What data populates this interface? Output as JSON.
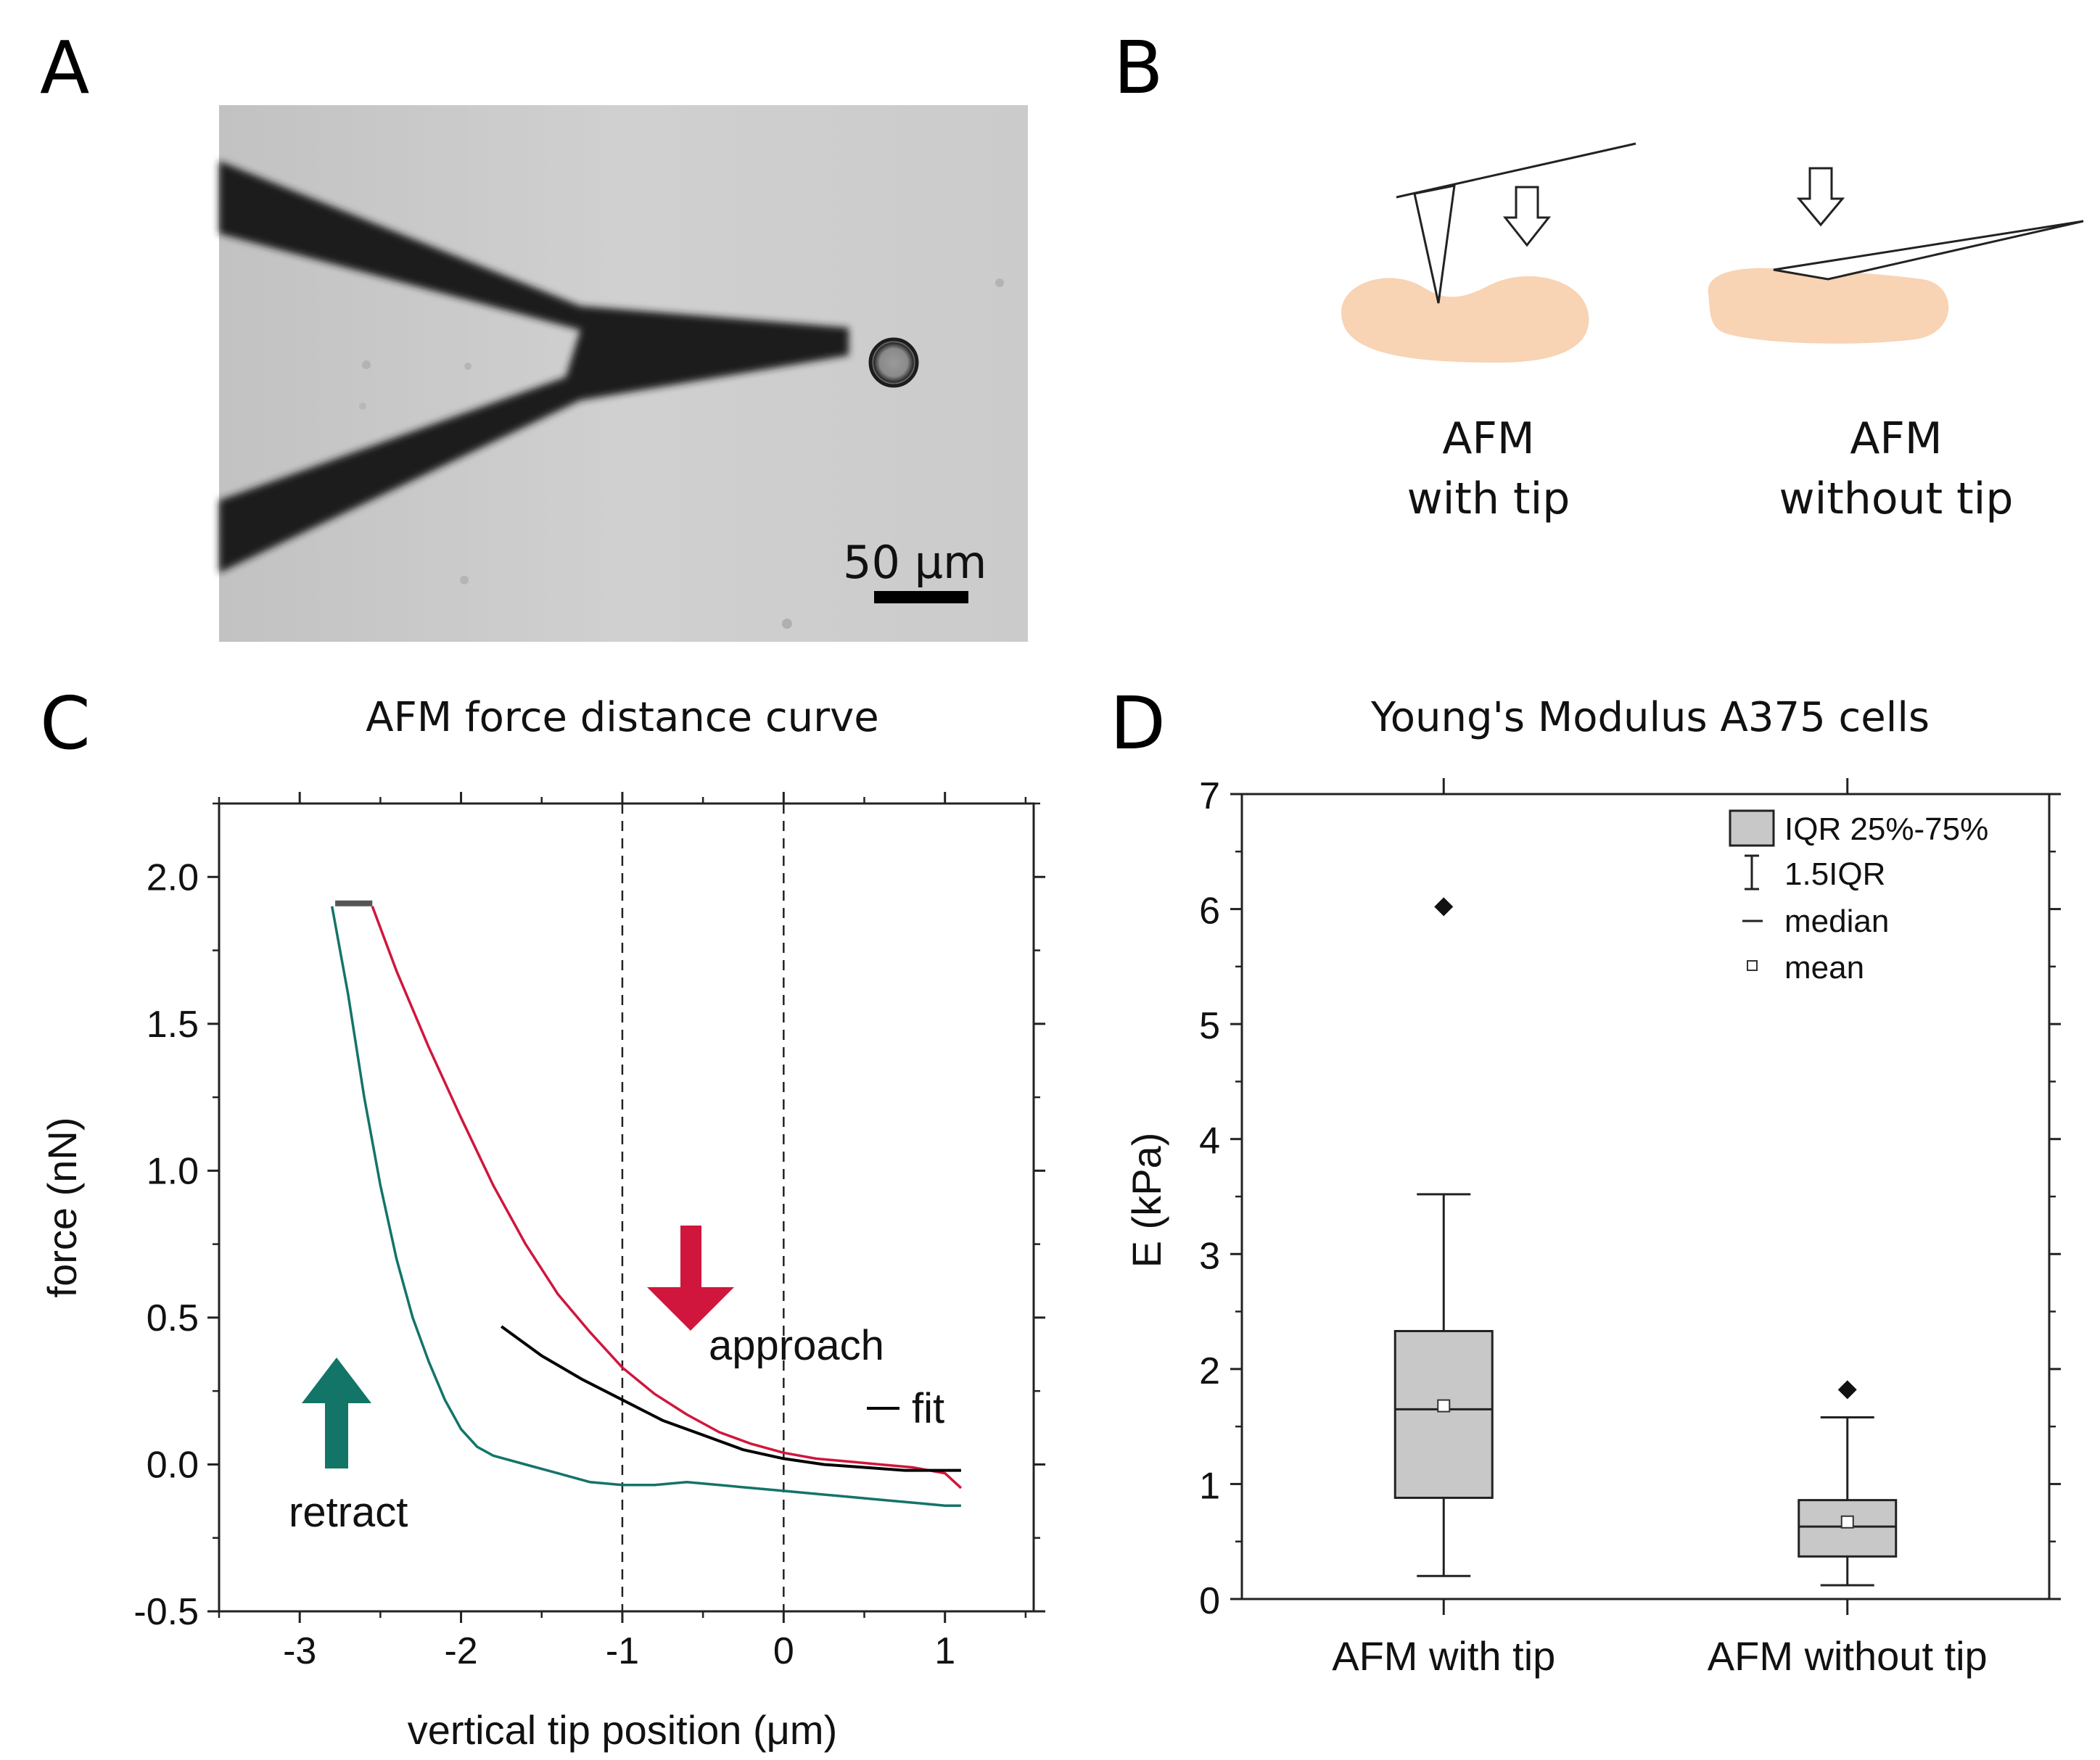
{
  "panel_a": {
    "label": "A",
    "scale_bar_label": "50 µm",
    "colors": {
      "background": "#cfcfcf",
      "cantilever": "#1c1c1c"
    }
  },
  "panel_b": {
    "label": "B",
    "left_caption": [
      "AFM",
      "with tip"
    ],
    "right_caption": [
      "AFM",
      "without tip"
    ],
    "colors": {
      "cell": "#f8d3b4"
    }
  },
  "chart_data": [
    {
      "panel": "C",
      "type": "line",
      "title": "AFM force distance curve",
      "xlabel": "vertical tip position (μm)",
      "ylabel": "force (nN)",
      "xlim": [
        -3.5,
        1.55
      ],
      "ylim": [
        -0.5,
        2.25
      ],
      "xticks": [
        -3,
        -2,
        -1,
        0,
        1
      ],
      "xtick_labels": [
        "-3",
        "-2",
        "-1",
        "0",
        "1"
      ],
      "yticks": [
        -0.5,
        0.0,
        0.5,
        1.0,
        1.5,
        2.0
      ],
      "ytick_labels": [
        "-0.5",
        "0.0",
        "0.5",
        "1.0",
        "1.5",
        "2.0"
      ],
      "vlines": [
        -1,
        0
      ],
      "series": [
        {
          "name": "approach",
          "color": "#d0163c",
          "x": [
            -2.55,
            -2.4,
            -2.2,
            -2.0,
            -1.8,
            -1.6,
            -1.4,
            -1.2,
            -1.0,
            -0.8,
            -0.6,
            -0.4,
            -0.2,
            0.0,
            0.2,
            0.4,
            0.6,
            0.8,
            1.0,
            1.1
          ],
          "y": [
            1.9,
            1.68,
            1.42,
            1.18,
            0.95,
            0.75,
            0.58,
            0.45,
            0.33,
            0.24,
            0.17,
            0.11,
            0.07,
            0.04,
            0.02,
            0.01,
            0.0,
            -0.01,
            -0.03,
            -0.08
          ]
        },
        {
          "name": "retract",
          "color": "#137468",
          "x": [
            -2.8,
            -2.7,
            -2.6,
            -2.5,
            -2.4,
            -2.3,
            -2.2,
            -2.1,
            -2.0,
            -1.9,
            -1.8,
            -1.6,
            -1.4,
            -1.2,
            -1.0,
            -0.8,
            -0.6,
            -0.4,
            -0.2,
            0.0,
            0.2,
            0.4,
            0.6,
            0.8,
            1.0,
            1.1
          ],
          "y": [
            1.9,
            1.6,
            1.25,
            0.95,
            0.7,
            0.5,
            0.35,
            0.22,
            0.12,
            0.06,
            0.03,
            -0.0,
            -0.03,
            -0.06,
            -0.07,
            -0.07,
            -0.06,
            -0.07,
            -0.08,
            -0.09,
            -0.1,
            -0.11,
            -0.12,
            -0.13,
            -0.14,
            -0.14
          ]
        },
        {
          "name": "fit",
          "color": "#000000",
          "x": [
            -1.75,
            -1.5,
            -1.25,
            -1.0,
            -0.75,
            -0.5,
            -0.25,
            0.0,
            0.25,
            0.5,
            0.75,
            1.0,
            1.1
          ],
          "y": [
            0.47,
            0.37,
            0.29,
            0.22,
            0.15,
            0.1,
            0.05,
            0.02,
            0.0,
            -0.01,
            -0.02,
            -0.02,
            -0.02
          ]
        },
        {
          "name": "plateau",
          "color": "#555555",
          "x": [
            -2.78,
            -2.55
          ],
          "y": [
            1.91,
            1.91
          ]
        }
      ],
      "annotations": {
        "approach": "approach",
        "retract": "retract",
        "fit": "fit"
      }
    },
    {
      "panel": "D",
      "type": "box",
      "title": "Young's Modulus A375 cells",
      "ylabel": "E (kPa)",
      "ylim": [
        0,
        7
      ],
      "yticks": [
        0,
        1,
        2,
        3,
        4,
        5,
        6,
        7
      ],
      "ytick_labels": [
        "0",
        "1",
        "2",
        "3",
        "4",
        "5",
        "6",
        "7"
      ],
      "categories": [
        "AFM with tip",
        "AFM without tip"
      ],
      "boxes": [
        {
          "name": "AFM with tip",
          "q1": 0.88,
          "median": 1.65,
          "q3": 2.33,
          "mean": 1.68,
          "whisker_low": 0.2,
          "whisker_high": 3.52,
          "outliers": [
            6.02
          ]
        },
        {
          "name": "AFM without tip",
          "q1": 0.37,
          "median": 0.63,
          "q3": 0.86,
          "mean": 0.67,
          "whisker_low": 0.12,
          "whisker_high": 1.58,
          "outliers": [
            1.82
          ]
        }
      ],
      "legend": [
        "IQR 25%-75%",
        "1.5IQR",
        "median",
        "mean"
      ],
      "colors": {
        "box": "#c8c8c8"
      }
    }
  ]
}
